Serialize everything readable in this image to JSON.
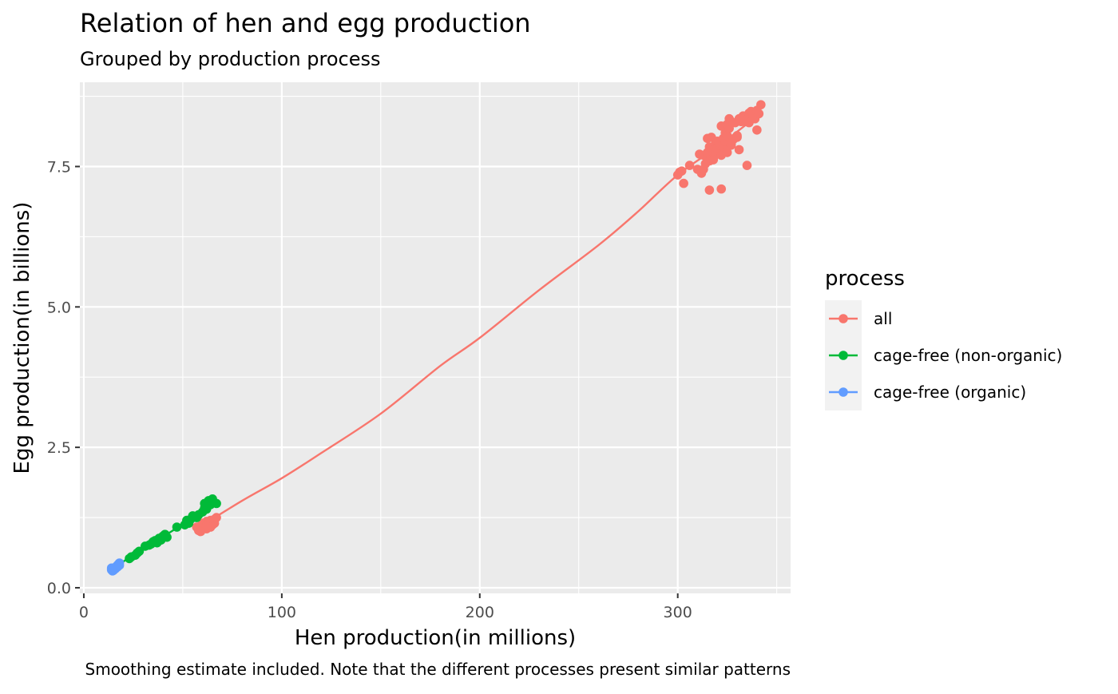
{
  "chart_data": {
    "type": "scatter",
    "title": "Relation of hen and egg production",
    "subtitle": "Grouped by production process",
    "xlabel": "Hen production(in millions)",
    "ylabel": "Egg production(in billions)",
    "caption": "Smoothing estimate included. Note that the different processes present similar patterns",
    "xlim": [
      -2,
      357
    ],
    "ylim": [
      -0.1,
      9.0
    ],
    "x_ticks": [
      0,
      100,
      200,
      300
    ],
    "y_ticks": [
      0.0,
      2.5,
      5.0,
      7.5
    ],
    "y_tick_labels": [
      "0.0",
      "2.5",
      "5.0",
      "7.5"
    ],
    "grid": true,
    "legend": {
      "title": "process",
      "position": "right",
      "entries": [
        "all",
        "cage-free (non-organic)",
        "cage-free (organic)"
      ]
    },
    "colors": {
      "all": "#F8766D",
      "cage-free (non-organic)": "#00BA38",
      "cage-free (organic)": "#619CFF",
      "panel_background": "#EBEBEB",
      "grid": "#FFFFFF"
    },
    "series": [
      {
        "name": "all",
        "color": "#F8766D",
        "x": [
          300,
          301,
          302,
          303,
          306,
          310,
          311,
          312,
          313,
          314,
          315,
          315,
          316,
          316,
          317,
          318,
          319,
          319,
          320,
          320,
          321,
          321,
          322,
          322,
          323,
          323,
          324,
          324,
          325,
          325,
          326,
          326,
          327,
          327,
          328,
          329,
          330,
          331,
          332,
          333,
          334,
          335,
          336,
          336,
          337,
          338,
          339,
          340,
          341,
          342,
          316,
          322,
          336,
          331,
          340,
          313,
          318,
          325,
          327,
          330,
          57,
          58,
          59,
          60,
          60,
          61,
          61,
          62,
          62,
          63,
          63,
          64,
          64,
          65,
          65,
          66,
          66,
          67,
          62,
          59
        ],
        "y": [
          7.35,
          7.4,
          7.42,
          7.2,
          7.52,
          7.45,
          7.72,
          7.38,
          7.7,
          7.55,
          7.75,
          8.0,
          7.6,
          7.85,
          8.02,
          7.65,
          7.78,
          7.9,
          7.82,
          7.95,
          7.88,
          7.92,
          8.22,
          7.7,
          7.85,
          8.0,
          8.1,
          7.95,
          8.25,
          8.05,
          8.18,
          8.35,
          8.3,
          7.9,
          7.98,
          8.28,
          8.05,
          7.8,
          8.3,
          8.4,
          8.3,
          7.52,
          8.45,
          8.38,
          8.48,
          8.4,
          8.35,
          8.5,
          8.44,
          8.6,
          7.08,
          7.1,
          8.28,
          8.35,
          8.15,
          7.45,
          7.62,
          7.75,
          7.88,
          8.02,
          1.08,
          1.02,
          1.1,
          1.05,
          1.15,
          1.08,
          1.12,
          1.05,
          1.18,
          1.1,
          1.15,
          1.08,
          1.2,
          1.12,
          1.18,
          1.15,
          1.22,
          1.25,
          1.1,
          1.0
        ]
      },
      {
        "name": "cage-free (non-organic)",
        "color": "#00BA38",
        "x": [
          23,
          24,
          26,
          27,
          28,
          31,
          33,
          34,
          35,
          36,
          37,
          38,
          39,
          40,
          41,
          42,
          47,
          51,
          52,
          53,
          54,
          55,
          58,
          60,
          61,
          62,
          63,
          64,
          65,
          67,
          61,
          57
        ],
        "y": [
          0.52,
          0.55,
          0.58,
          0.62,
          0.65,
          0.74,
          0.76,
          0.78,
          0.82,
          0.84,
          0.8,
          0.88,
          0.85,
          0.92,
          0.95,
          0.9,
          1.08,
          1.12,
          1.2,
          1.15,
          1.22,
          1.28,
          1.3,
          1.35,
          1.42,
          1.4,
          1.55,
          1.48,
          1.58,
          1.5,
          1.5,
          1.25
        ]
      },
      {
        "name": "cage-free (organic)",
        "color": "#619CFF",
        "x": [
          14,
          14.5,
          15,
          15.5,
          16,
          16.5,
          17,
          17.5,
          18,
          15,
          16,
          17,
          14,
          18
        ],
        "y": [
          0.32,
          0.3,
          0.35,
          0.33,
          0.36,
          0.38,
          0.4,
          0.42,
          0.44,
          0.31,
          0.34,
          0.37,
          0.35,
          0.4
        ]
      }
    ],
    "smooth_lines": [
      {
        "name": "all",
        "color": "#F8766D",
        "x": [
          57,
          80,
          100,
          120,
          150,
          180,
          200,
          230,
          260,
          280,
          300,
          320,
          342
        ],
        "y": [
          1.05,
          1.55,
          1.95,
          2.4,
          3.1,
          3.95,
          4.45,
          5.3,
          6.1,
          6.7,
          7.35,
          7.85,
          8.45
        ]
      },
      {
        "name": "cage-free (non-organic)",
        "color": "#00BA38",
        "x": [
          18,
          30,
          45,
          60,
          67
        ],
        "y": [
          0.42,
          0.7,
          1.02,
          1.38,
          1.52
        ]
      },
      {
        "name": "cage-free (organic)",
        "color": "#619CFF",
        "x": [
          13.5,
          18
        ],
        "y": [
          0.3,
          0.44
        ]
      }
    ]
  }
}
